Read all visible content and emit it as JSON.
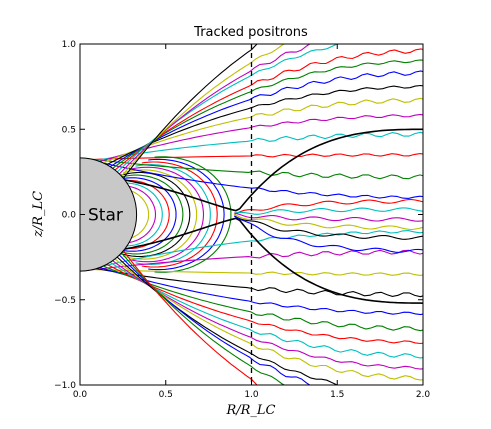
{
  "chart_data": {
    "type": "line",
    "title": "Tracked positrons",
    "xlabel": "R/R_LC",
    "ylabel": "z/R_LC",
    "xlim": [
      0.0,
      2.0
    ],
    "ylim": [
      -1.0,
      1.0
    ],
    "xticks": [
      "0.0",
      "0.5",
      "1.0",
      "1.5",
      "2.0"
    ],
    "yticks": [
      "-1.0",
      "-0.5",
      "0.0",
      "0.5",
      "1.0"
    ],
    "grid": false,
    "legend": "none",
    "light_cylinder_x": 1.0,
    "star": {
      "label": "Star",
      "radius": 0.33,
      "color": "#c8c8c8"
    },
    "open_lines": {
      "colors": [
        "#0000ff",
        "#008000",
        "#ff0000",
        "#00bfbf",
        "#bf00bf",
        "#bfbf00",
        "#000000"
      ],
      "angles_deg": [
        86,
        82,
        78,
        74,
        70,
        66,
        62,
        58,
        55,
        52,
        49,
        46,
        43,
        40
      ],
      "endpoints_upper": [
        0.1,
        0.22,
        0.35,
        0.47,
        0.58,
        0.67,
        0.75,
        0.83,
        0.9,
        0.96,
        1.05,
        1.1,
        1.18,
        1.3
      ],
      "endpoints_lower": [
        -0.1,
        -0.22,
        -0.35,
        -0.47,
        -0.58,
        -0.67,
        -0.75,
        -0.83,
        -0.9,
        -0.96,
        -1.05,
        -1.1,
        -1.18,
        -1.3
      ]
    },
    "separatrix": {
      "color": "#000000",
      "upper_z": 0.5,
      "lower_z": -0.52,
      "cross_x": 0.92
    },
    "current_sheet_lines": [
      0.08,
      0.03,
      -0.03,
      -0.08,
      -0.14,
      -0.22
    ],
    "closed_loops": {
      "colors": [
        "#008000",
        "#0000ff",
        "#ff0000",
        "#00bfbf",
        "#bf00bf",
        "#bfbf00",
        "#000000"
      ],
      "extents_x": [
        0.88,
        0.84,
        0.8,
        0.76,
        0.72,
        0.68,
        0.64,
        0.6,
        0.56,
        0.52,
        0.48,
        0.44,
        0.4
      ]
    }
  }
}
